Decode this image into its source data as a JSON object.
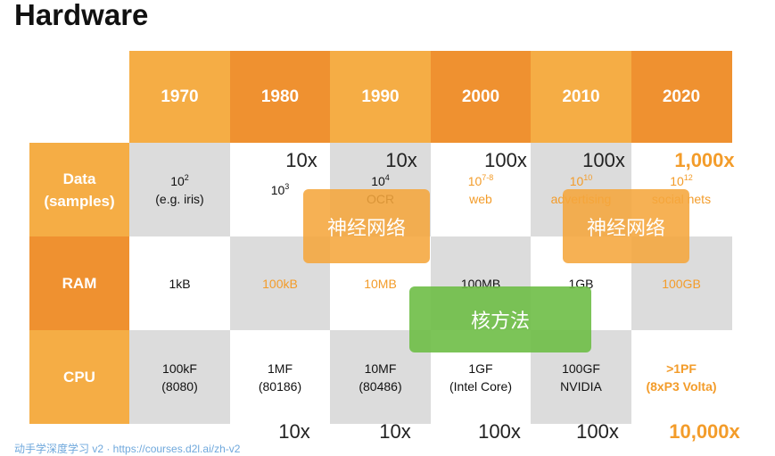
{
  "title": "Hardware",
  "table": {
    "columns": [
      "1970",
      "1980",
      "1990",
      "2000",
      "2010",
      "2020"
    ],
    "rows": [
      {
        "label": [
          "Data",
          "(samples)"
        ],
        "cells": [
          {
            "lines": [
              {
                "base": "10",
                "exp": "2"
              },
              "(e.g. iris)"
            ]
          },
          {
            "lines": [
              {
                "base": "10",
                "exp": "3"
              }
            ]
          },
          {
            "lines": [
              {
                "base": "10",
                "exp": "4"
              },
              "OCR"
            ]
          },
          {
            "lines": [
              {
                "base": "10",
                "exp": "7-8"
              },
              "web"
            ],
            "accent": true
          },
          {
            "lines": [
              {
                "base": "10",
                "exp": "10"
              },
              "advertising"
            ],
            "accent": true
          },
          {
            "lines": [
              {
                "base": "10",
                "exp": "12"
              },
              "social nets"
            ],
            "accent": true
          }
        ]
      },
      {
        "label": [
          "RAM"
        ],
        "cells": [
          {
            "lines": [
              "1kB"
            ]
          },
          {
            "lines": [
              "100kB"
            ],
            "accent": true
          },
          {
            "lines": [
              "10MB"
            ],
            "accent": true
          },
          {
            "lines": [
              "100MB"
            ]
          },
          {
            "lines": [
              "1GB"
            ]
          },
          {
            "lines": [
              "100GB"
            ],
            "accent": true
          }
        ]
      },
      {
        "label": [
          "CPU"
        ],
        "cells": [
          {
            "lines": [
              "100kF",
              "(8080)"
            ]
          },
          {
            "lines": [
              "1MF",
              "(80186)"
            ]
          },
          {
            "lines": [
              "10MF",
              "(80486)"
            ]
          },
          {
            "lines": [
              "1GF",
              "(Intel Core)"
            ]
          },
          {
            "lines": [
              "100GF",
              "NVIDIA"
            ]
          },
          {
            "lines": [
              ">1PF",
              "(8xP3 Volta)"
            ],
            "accent": true,
            "bold": true
          }
        ]
      }
    ]
  },
  "growth_data": [
    {
      "text": "10x"
    },
    {
      "text": "10x"
    },
    {
      "text": "100x"
    },
    {
      "text": "100x"
    },
    {
      "text": "1,000x",
      "accent": true
    }
  ],
  "growth_cpu": [
    {
      "text": "10x"
    },
    {
      "text": "10x"
    },
    {
      "text": "100x"
    },
    {
      "text": "100x"
    },
    {
      "text": "10,000x",
      "accent": true
    }
  ],
  "overlays": [
    {
      "text": "神经网络",
      "color": "orange"
    },
    {
      "text": "神经网络",
      "color": "orange"
    },
    {
      "text": "核方法",
      "color": "green"
    }
  ],
  "footer": "动手学深度学习 v2 · https://courses.d2l.ai/zh-v2"
}
